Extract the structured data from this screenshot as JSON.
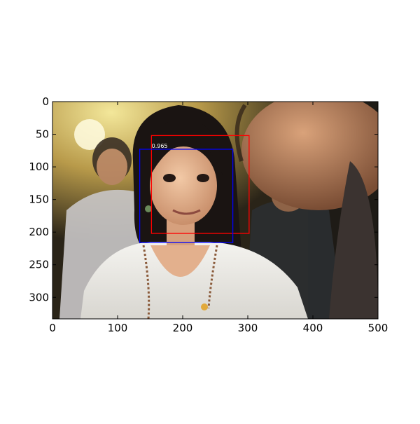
{
  "image": {
    "width": 500,
    "height": 333,
    "description": "photo of a smiling young woman with dark hair in a white top, blurred people in background"
  },
  "axes": {
    "xlim": [
      0,
      500
    ],
    "ylim": [
      333,
      0
    ],
    "x_ticks": [
      0,
      100,
      200,
      300,
      400,
      500
    ],
    "y_ticks": [
      0,
      50,
      100,
      150,
      200,
      250,
      300
    ],
    "y_inverted": true,
    "grid": false
  },
  "detections": [
    {
      "name": "detection-box-red",
      "color": "#ff0000",
      "x0": 152,
      "y0": 52,
      "x1": 302,
      "y1": 202,
      "score": ""
    },
    {
      "name": "detection-box-blue",
      "color": "#0000ff",
      "x0": 134,
      "y0": 73,
      "x1": 277,
      "y1": 216,
      "score": "0.965"
    }
  ]
}
